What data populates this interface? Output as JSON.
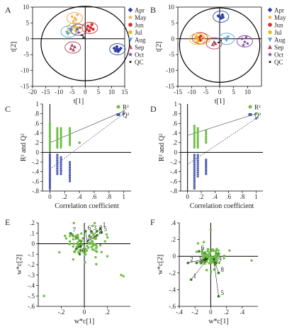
{
  "panel_labels": [
    "A",
    "B",
    "C",
    "D",
    "E",
    "F"
  ],
  "legend_entries": [
    {
      "name": "Apr",
      "color": "#2e3fa3",
      "shape": "diamond"
    },
    {
      "name": "May",
      "color": "#f2a23c",
      "shape": "star"
    },
    {
      "name": "Jun",
      "color": "#d62f2f",
      "shape": "circle"
    },
    {
      "name": "Jul",
      "color": "#e2c21e",
      "shape": "circle"
    },
    {
      "name": "Aug",
      "color": "#5aa0d8",
      "shape": "triangle-down"
    },
    {
      "name": "Sep",
      "color": "#b1455b",
      "shape": "triangle"
    },
    {
      "name": "Oct",
      "color": "#7a3fa0",
      "shape": "star"
    },
    {
      "name": "QC",
      "color": "#222222",
      "shape": "dot"
    }
  ],
  "chart_data": [
    {
      "panel": "A",
      "type": "scatter",
      "xlabel": "t[1]",
      "ylabel": "t[2]",
      "xlim": [
        -20,
        15
      ],
      "ylim": [
        -15,
        10
      ],
      "xticks": [
        -20,
        -15,
        -10,
        -5,
        0,
        5,
        10,
        15
      ],
      "yticks": [
        -15,
        -10,
        -5,
        0,
        5,
        10
      ],
      "groups": [
        {
          "name": "Apr",
          "points": [
            [
              11,
              -3
            ],
            [
              12,
              -2.5
            ],
            [
              13,
              -3.5
            ],
            [
              12.5,
              -4
            ],
            [
              13.5,
              -3
            ],
            [
              11.5,
              -3.8
            ],
            [
              12.2,
              -3.2
            ]
          ]
        },
        {
          "name": "May",
          "points": [
            [
              -5,
              7
            ],
            [
              -4,
              6.5
            ],
            [
              -3,
              7.5
            ],
            [
              -4.5,
              5.5
            ],
            [
              -3.5,
              6
            ]
          ]
        },
        {
          "name": "Jun",
          "points": [
            [
              1,
              4
            ],
            [
              2,
              3.5
            ],
            [
              0.5,
              3
            ],
            [
              2.5,
              4.5
            ],
            [
              1.5,
              2.5
            ],
            [
              3,
              3
            ]
          ]
        },
        {
          "name": "Jul",
          "points": [
            [
              -4,
              4
            ],
            [
              -3,
              3.5
            ],
            [
              -5,
              3
            ],
            [
              -3.5,
              2.5
            ]
          ]
        },
        {
          "name": "Aug",
          "points": [
            [
              -6,
              3
            ],
            [
              -7,
              2
            ],
            [
              -5.5,
              2.5
            ],
            [
              -6.5,
              1.5
            ]
          ]
        },
        {
          "name": "Sep",
          "points": [
            [
              -5,
              -2
            ],
            [
              -4,
              -2.5
            ],
            [
              -5.5,
              -3
            ],
            [
              -4.5,
              -3.5
            ]
          ]
        },
        {
          "name": "Oct",
          "points": [
            [
              -3,
              3
            ],
            [
              -2.5,
              2
            ],
            [
              -2,
              3.5
            ]
          ]
        },
        {
          "name": "QC",
          "points": [
            [
              -1,
              1
            ],
            [
              -0.5,
              0.5
            ],
            [
              -1.5,
              1.2
            ],
            [
              -0.8,
              0.2
            ]
          ]
        }
      ]
    },
    {
      "panel": "B",
      "type": "scatter",
      "xlabel": "t[1]",
      "ylabel": "t[2]",
      "xlim": [
        -15,
        15
      ],
      "ylim": [
        -15,
        10
      ],
      "xticks": [
        -15,
        -10,
        -5,
        0,
        5,
        10
      ],
      "yticks": [
        -15,
        -10,
        -5,
        0,
        5,
        10
      ],
      "groups": [
        {
          "name": "Apr",
          "points": [
            [
              0,
              7
            ],
            [
              1,
              7.5
            ],
            [
              0.5,
              6.5
            ],
            [
              -0.5,
              7.2
            ],
            [
              1.2,
              6.8
            ]
          ]
        },
        {
          "name": "May",
          "points": [
            [
              -7,
              0
            ],
            [
              -6,
              0.5
            ],
            [
              -6.5,
              -0.5
            ],
            [
              -5.5,
              0.2
            ]
          ]
        },
        {
          "name": "Jun",
          "points": [
            [
              -7.5,
              0.3
            ],
            [
              -7,
              -0.5
            ],
            [
              -6.8,
              0.8
            ]
          ]
        },
        {
          "name": "Jul",
          "points": [
            [
              -8,
              0
            ],
            [
              -7.8,
              -0.8
            ],
            [
              -8.3,
              0.6
            ]
          ]
        },
        {
          "name": "Aug",
          "points": [
            [
              2,
              0
            ],
            [
              3,
              0.5
            ],
            [
              2.5,
              -0.5
            ]
          ]
        },
        {
          "name": "Sep",
          "points": [
            [
              -2,
              -1
            ],
            [
              -1.5,
              -1.5
            ],
            [
              -2.5,
              -1.8
            ]
          ]
        },
        {
          "name": "Oct",
          "points": [
            [
              8,
              0
            ],
            [
              9,
              -1
            ],
            [
              8.5,
              -2
            ],
            [
              9.5,
              0.5
            ],
            [
              10,
              -1.5
            ]
          ]
        },
        {
          "name": "QC",
          "points": [
            [
              0,
              -1
            ],
            [
              0.5,
              -0.5
            ],
            [
              -0.5,
              -1.2
            ]
          ]
        }
      ]
    },
    {
      "panel": "C",
      "type": "scatter",
      "xlabel": "Correlation coefficient",
      "ylabel": "R² and Q²",
      "xlim": [
        -0.1,
        1.1
      ],
      "ylim": [
        -0.8,
        1
      ],
      "xticks": [
        0,
        0.2,
        0.4,
        0.6,
        0.8,
        1
      ],
      "yticks": [
        -0.8,
        -0.6,
        -0.4,
        -0.2,
        0,
        0.2,
        0.4,
        0.6,
        0.8,
        1
      ],
      "series": [
        {
          "name": "R²",
          "color": "#6ebd45",
          "line": [
            [
              0,
              0.2
            ],
            [
              1,
              0.85
            ]
          ],
          "columns": [
            {
              "x": 0,
              "from": 0.05,
              "to": 0.6
            },
            {
              "x": 0.1,
              "from": 0.1,
              "to": 0.5
            },
            {
              "x": 0.15,
              "from": 0.1,
              "to": 0.5
            },
            {
              "x": 0.27,
              "from": 0.15,
              "to": 0.5
            }
          ],
          "extra": [
            [
              0.4,
              0.2
            ],
            [
              1,
              0.85
            ]
          ]
        },
        {
          "name": "Q²",
          "color": "#4a56b0",
          "line": [
            [
              0,
              -0.35
            ],
            [
              1,
              0.8
            ]
          ],
          "columns": [
            {
              "x": 0,
              "from": -0.75,
              "to": -0.05
            },
            {
              "x": 0.1,
              "from": -0.45,
              "to": -0.05
            },
            {
              "x": 0.15,
              "from": -0.45,
              "to": -0.1
            },
            {
              "x": 0.27,
              "from": -0.6,
              "to": -0.2
            }
          ],
          "extra": [
            [
              1,
              0.8
            ]
          ]
        }
      ]
    },
    {
      "panel": "D",
      "type": "scatter",
      "xlabel": "Correlation coefficient",
      "ylabel": "R² and Q²",
      "xlim": [
        -0.1,
        1.1
      ],
      "ylim": [
        -0.8,
        1
      ],
      "xticks": [
        0,
        0.2,
        0.4,
        0.6,
        0.8,
        1
      ],
      "yticks": [
        -0.8,
        -0.6,
        -0.4,
        -0.2,
        0,
        0.2,
        0.4,
        0.6,
        0.8,
        1
      ],
      "series": [
        {
          "name": "R²",
          "color": "#6ebd45",
          "line": [
            [
              0,
              0.35
            ],
            [
              1,
              0.8
            ]
          ],
          "columns": [
            {
              "x": 0.1,
              "from": 0.1,
              "to": 0.55
            },
            {
              "x": 0.15,
              "from": 0.1,
              "to": 0.5
            },
            {
              "x": 0.27,
              "from": 0.2,
              "to": 0.45
            }
          ],
          "extra": [
            [
              1,
              0.8
            ]
          ]
        },
        {
          "name": "Q²",
          "color": "#4a56b0",
          "line": [
            [
              0,
              -0.25
            ],
            [
              1,
              0.7
            ]
          ],
          "columns": [
            {
              "x": 0.1,
              "from": -0.75,
              "to": -0.05
            },
            {
              "x": 0.15,
              "from": -0.5,
              "to": -0.05
            },
            {
              "x": 0.27,
              "from": -0.45,
              "to": -0.15
            }
          ],
          "extra": [
            [
              1,
              0.7
            ]
          ]
        }
      ]
    },
    {
      "panel": "E",
      "type": "scatter",
      "xlabel": "w*c[1]",
      "ylabel": "w*c[2]",
      "xlim": [
        -0.4,
        0.4
      ],
      "ylim": [
        -0.6,
        0.2
      ],
      "xticks": [
        -0.2,
        0,
        0.2
      ],
      "yticks": [
        -0.6,
        -0.5,
        -0.4,
        -0.3,
        -0.2,
        -0.1,
        0,
        0.1,
        0.2
      ],
      "color": "#6ebd45",
      "labels": [
        {
          "text": "1",
          "x": 0.14,
          "y": 0.15
        },
        {
          "text": "2",
          "x": 0.11,
          "y": 0.12
        },
        {
          "text": "3",
          "x": 0.06,
          "y": 0.12
        },
        {
          "text": "4",
          "x": -0.07,
          "y": -0.05
        },
        {
          "text": "5",
          "x": 0.15,
          "y": 0.11
        },
        {
          "text": "6",
          "x": 0.01,
          "y": 0.12
        },
        {
          "text": "7",
          "x": -0.12,
          "y": 0.1
        },
        {
          "text": "8",
          "x": 0.11,
          "y": 0.08
        },
        {
          "text": "9",
          "x": -0.04,
          "y": -0.1
        }
      ]
    },
    {
      "panel": "F",
      "type": "scatter",
      "xlabel": "w*c[1]",
      "ylabel": "w*c[2]",
      "xlim": [
        -0.4,
        0.6
      ],
      "ylim": [
        -0.6,
        0.4
      ],
      "xticks": [
        -0.4,
        -0.2,
        0,
        0.2,
        0.4
      ],
      "yticks": [
        -0.6,
        -0.4,
        -0.2,
        0,
        0.2,
        0.4
      ],
      "color": "#6ebd45",
      "labels": [
        {
          "text": "1",
          "x": -0.25,
          "y": -0.28
        },
        {
          "text": "2",
          "x": -0.29,
          "y": -0.08
        },
        {
          "text": "3",
          "x": -0.18,
          "y": -0.08
        },
        {
          "text": "4",
          "x": -0.12,
          "y": -0.08
        },
        {
          "text": "5",
          "x": 0.1,
          "y": -0.48
        },
        {
          "text": "6",
          "x": -0.15,
          "y": 0.06
        },
        {
          "text": "7",
          "x": 0.04,
          "y": -0.03
        },
        {
          "text": "8",
          "x": 0.1,
          "y": -0.2
        },
        {
          "text": "9",
          "x": 0.07,
          "y": -0.08
        }
      ]
    }
  ]
}
